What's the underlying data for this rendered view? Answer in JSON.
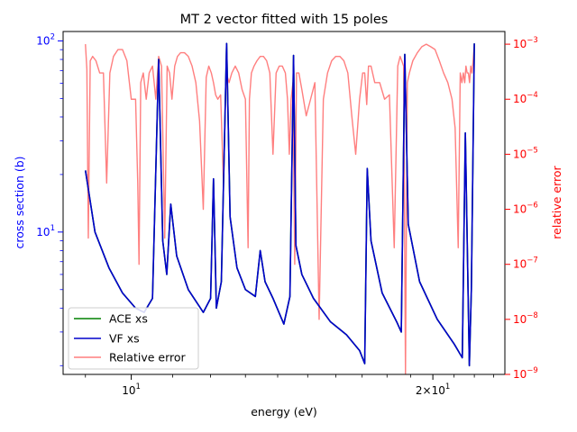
{
  "chart_data": {
    "type": "line",
    "title": "MT 2 vector fitted with 15 poles",
    "xlabel": "energy (eV)",
    "ylabel_left": "cross section (b)",
    "ylabel_right": "relative error",
    "x_scale": "log",
    "y_scale_left": "log",
    "y_scale_right": "log",
    "xlim": [
      8.55,
      23.6
    ],
    "ylim_left": [
      1.8,
      112
    ],
    "ylim_right": [
      1e-09,
      0.0017
    ],
    "x_ticks": [
      {
        "value": 10,
        "label": "10",
        "exp": "1"
      },
      {
        "value": 20,
        "label": "2×10",
        "exp": "1"
      }
    ],
    "y_ticks_left": [
      {
        "value": 10,
        "label": "10",
        "exp": "1"
      },
      {
        "value": 100,
        "label": "10",
        "exp": "2"
      }
    ],
    "y_ticks_right": [
      {
        "value": 1e-09,
        "label": "10",
        "exp": "−9"
      },
      {
        "value": 1e-08,
        "label": "10",
        "exp": "−8"
      },
      {
        "value": 1e-07,
        "label": "10",
        "exp": "−7"
      },
      {
        "value": 1e-06,
        "label": "10",
        "exp": "−6"
      },
      {
        "value": 1e-05,
        "label": "10",
        "exp": "−5"
      },
      {
        "value": 0.0001,
        "label": "10",
        "exp": "−4"
      },
      {
        "value": 0.001,
        "label": "10",
        "exp": "−3"
      }
    ],
    "legend_position": "lower-left",
    "colors": {
      "ace": "#008000",
      "vf": "#0000cc",
      "err": "#ff7f7f",
      "left_axis": "#0000ff",
      "right_axis": "#ff0000"
    },
    "series": [
      {
        "name": "ACE xs",
        "axis": "left",
        "color": "#008000",
        "x": [
          9.0,
          9.2,
          9.5,
          9.8,
          10.1,
          10.3,
          10.5,
          10.65,
          10.75,
          10.85,
          10.95,
          11.1,
          11.4,
          11.8,
          12.0,
          12.08,
          12.16,
          12.3,
          12.45,
          12.55,
          12.75,
          13.0,
          13.3,
          13.45,
          13.6,
          13.85,
          14.2,
          14.4,
          14.52,
          14.6,
          14.8,
          15.2,
          15.8,
          16.4,
          16.9,
          17.1,
          17.2,
          17.35,
          17.8,
          18.4,
          18.6,
          18.75,
          18.9,
          19.4,
          20.2,
          21.0,
          21.4,
          21.55,
          21.75,
          21.85,
          22.0
        ],
        "values": [
          21,
          10,
          6.5,
          4.8,
          4.0,
          3.8,
          4.5,
          80,
          9,
          6,
          14,
          7.5,
          5.0,
          3.8,
          4.5,
          19,
          4.0,
          5.5,
          97,
          12,
          6.5,
          5.0,
          4.6,
          8.0,
          5.5,
          4.5,
          3.3,
          4.6,
          84,
          8.5,
          6.0,
          4.5,
          3.4,
          2.9,
          2.4,
          2.05,
          21.5,
          9,
          4.8,
          3.4,
          3.0,
          85,
          11,
          5.5,
          3.5,
          2.6,
          2.2,
          33,
          2.0,
          5,
          97
        ]
      },
      {
        "name": "VF xs",
        "axis": "left",
        "color": "#0000cc",
        "x": [
          9.0,
          9.2,
          9.5,
          9.8,
          10.1,
          10.3,
          10.5,
          10.65,
          10.75,
          10.85,
          10.95,
          11.1,
          11.4,
          11.8,
          12.0,
          12.08,
          12.16,
          12.3,
          12.45,
          12.55,
          12.75,
          13.0,
          13.3,
          13.45,
          13.6,
          13.85,
          14.2,
          14.4,
          14.52,
          14.6,
          14.8,
          15.2,
          15.8,
          16.4,
          16.9,
          17.1,
          17.2,
          17.35,
          17.8,
          18.4,
          18.6,
          18.75,
          18.9,
          19.4,
          20.2,
          21.0,
          21.4,
          21.55,
          21.75,
          21.85,
          22.0
        ],
        "values": [
          21,
          10,
          6.5,
          4.8,
          4.0,
          3.8,
          4.5,
          80,
          9,
          6,
          14,
          7.5,
          5.0,
          3.8,
          4.5,
          19,
          4.0,
          5.5,
          97,
          12,
          6.5,
          5.0,
          4.6,
          8.0,
          5.5,
          4.5,
          3.3,
          4.6,
          84,
          8.5,
          6.0,
          4.5,
          3.4,
          2.9,
          2.4,
          2.05,
          21.5,
          9,
          4.8,
          3.4,
          3.0,
          85,
          11,
          5.5,
          3.5,
          2.6,
          2.2,
          33,
          2.0,
          5,
          97
        ]
      },
      {
        "name": "Relative error",
        "axis": "right",
        "color": "#ff7f7f",
        "x": [
          9.0,
          9.03,
          9.06,
          9.1,
          9.15,
          9.22,
          9.3,
          9.38,
          9.45,
          9.52,
          9.6,
          9.7,
          9.8,
          9.9,
          10.0,
          10.1,
          10.15,
          10.18,
          10.22,
          10.28,
          10.35,
          10.42,
          10.5,
          10.58,
          10.65,
          10.72,
          10.8,
          10.86,
          10.92,
          10.98,
          11.05,
          11.12,
          11.2,
          11.3,
          11.4,
          11.5,
          11.6,
          11.7,
          11.8,
          11.88,
          11.95,
          12.02,
          12.08,
          12.14,
          12.2,
          12.28,
          12.36,
          12.44,
          12.52,
          12.6,
          12.7,
          12.8,
          12.9,
          13.0,
          13.08,
          13.12,
          13.18,
          13.26,
          13.35,
          13.45,
          13.55,
          13.65,
          13.75,
          13.85,
          13.95,
          14.05,
          14.15,
          14.25,
          14.32,
          14.38,
          14.44,
          14.5,
          14.56,
          14.62,
          14.7,
          14.8,
          14.95,
          15.1,
          15.25,
          15.4,
          15.55,
          15.7,
          15.85,
          16.0,
          16.15,
          16.3,
          16.45,
          16.6,
          16.75,
          16.9,
          17.02,
          17.1,
          17.18,
          17.25,
          17.35,
          17.5,
          17.7,
          17.9,
          18.1,
          18.3,
          18.45,
          18.55,
          18.62,
          18.7,
          18.78,
          18.86,
          18.95,
          19.1,
          19.3,
          19.5,
          19.7,
          19.9,
          20.1,
          20.3,
          20.5,
          20.7,
          20.9,
          21.05,
          21.2,
          21.3,
          21.38,
          21.45,
          21.52,
          21.58,
          21.64,
          21.7,
          21.76,
          21.82,
          21.88,
          21.94,
          22.0
        ],
        "values": [
          0.001,
          0.00035,
          3e-07,
          0.0005,
          0.0006,
          0.0005,
          0.0003,
          0.0003,
          3e-06,
          0.0003,
          0.0006,
          0.0008,
          0.0008,
          0.0005,
          0.0001,
          0.0001,
          3e-06,
          1e-07,
          0.0002,
          0.0003,
          0.0001,
          0.0003,
          0.0004,
          0.0001,
          0.0006,
          0.0004,
          3e-07,
          0.0004,
          0.0003,
          0.0001,
          0.0004,
          0.0006,
          0.0007,
          0.0007,
          0.0006,
          0.0004,
          0.0002,
          4e-05,
          1e-06,
          0.00025,
          0.0004,
          0.0003,
          0.0002,
          0.00012,
          0.0001,
          0.00012,
          3e-06,
          0.0003,
          0.0002,
          0.0003,
          0.0004,
          0.0003,
          0.00015,
          0.0001,
          2e-07,
          0.0001,
          0.0003,
          0.0004,
          0.0005,
          0.0006,
          0.0006,
          0.0005,
          0.0003,
          1e-05,
          0.0003,
          0.0004,
          0.0004,
          0.0003,
          0.0001,
          1e-05,
          0.0001,
          0.0002,
          1e-07,
          0.0003,
          0.0003,
          0.00015,
          5e-05,
          0.0001,
          0.0002,
          1e-08,
          0.0001,
          0.0003,
          0.0005,
          0.0006,
          0.0006,
          0.0005,
          0.0003,
          5e-05,
          1e-05,
          0.0001,
          0.0003,
          0.0003,
          8e-05,
          0.0004,
          0.0004,
          0.0002,
          0.0002,
          0.0001,
          0.00012,
          2e-07,
          0.0004,
          0.0006,
          0.0005,
          0.0004,
          1e-09,
          0.0002,
          0.0003,
          0.0005,
          0.0007,
          0.0009,
          0.001,
          0.0009,
          0.0008,
          0.0005,
          0.0003,
          0.0002,
          0.0001,
          3e-05,
          2e-07,
          0.0003,
          0.0002,
          0.0003,
          0.0002,
          0.0004,
          0.0003,
          0.0003,
          0.0002,
          0.0004,
          0.0003,
          0.0005,
          0.001
        ]
      }
    ]
  }
}
